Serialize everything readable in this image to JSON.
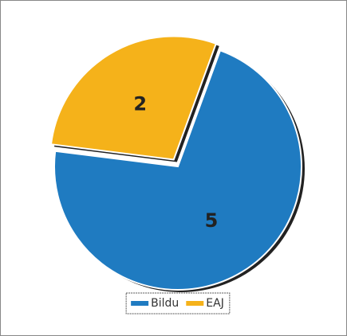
{
  "chart_data": {
    "type": "pie",
    "categories": [
      "Bildu",
      "EAJ"
    ],
    "values": [
      5,
      2
    ],
    "colors": [
      "#1f7bc1",
      "#f5b21a"
    ],
    "legend": "bottom",
    "exploded": [
      false,
      true
    ]
  }
}
